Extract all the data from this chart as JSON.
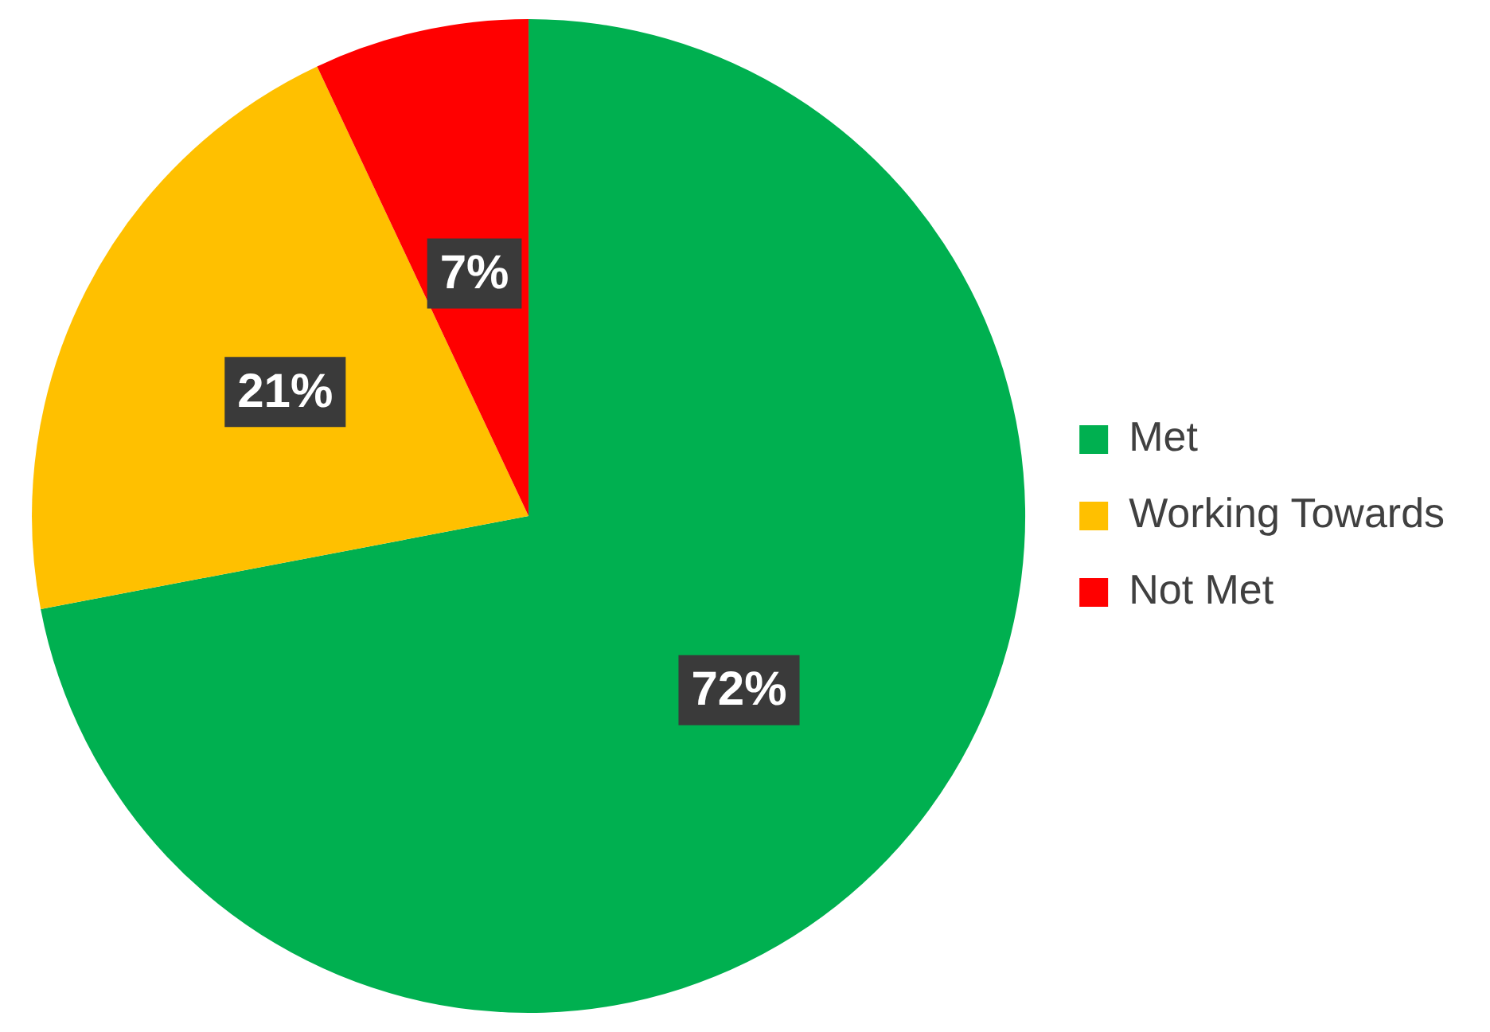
{
  "chart_data": {
    "type": "pie",
    "categories": [
      "Met",
      "Working Towards",
      "Not Met"
    ],
    "values": [
      72,
      21,
      7
    ],
    "colors": [
      "#00b050",
      "#ffc000",
      "#ff0000"
    ],
    "value_labels": [
      "72%",
      "21%",
      "7%"
    ],
    "legend": "right"
  }
}
